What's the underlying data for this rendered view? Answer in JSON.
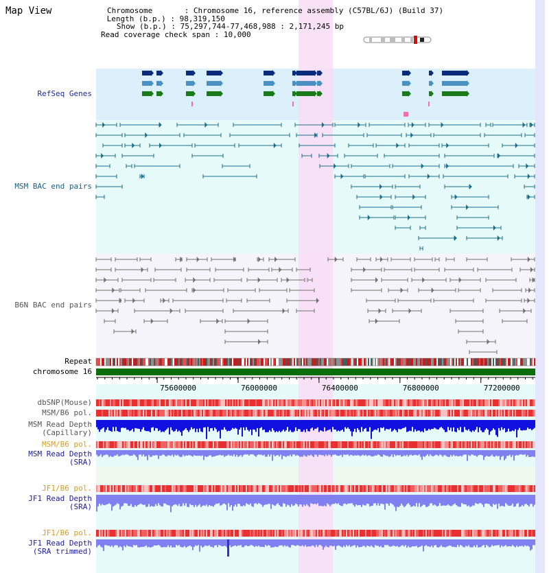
{
  "title": "Map View",
  "info": {
    "chromosome_label": "Chromosome",
    "chromosome_value": "Chromosome 16, reference assembly (C57BL/6J) (Build 37)",
    "length_label": "Length (b.p.)",
    "length_value": "98,319,150",
    "show_label": "Show (b.p.)",
    "show_value": "75,297,744-77,468,988 : 2,171,245 bp",
    "span_label": "Read coverage check span",
    "span_value": "10,000"
  },
  "tracks": {
    "refseq": "RefSeq Genes",
    "msm_bac": "MSM BAC end pairs",
    "b6n_bac": "B6N BAC end pairs",
    "repeat": "Repeat",
    "chromosome": "chromosome 16",
    "dbsnp": "dbSNP(Mouse)",
    "msm_pol": "MSM/B6 pol.",
    "msm_depth_cap_1": "MSM Read Depth",
    "msm_depth_cap_2": "(Capillary)",
    "msm_pol_sra": "MSM/B6 pol.",
    "msm_depth_sra_1": "MSM Read Depth",
    "msm_depth_sra_2": "(SRA)",
    "jf1_pol": "JF1/B6 pol.",
    "jf1_depth_1": "JF1 Read Depth",
    "jf1_depth_2": "(SRA)",
    "jf1_pol_trim": "JF1/B6 pol.",
    "jf1_depth_trim_1": "JF1 Read Depth",
    "jf1_depth_trim_2": "(SRA trimmed)"
  },
  "axis": {
    "ticks": [
      "75600000",
      "76000000",
      "76400000",
      "76800000",
      "77200000"
    ],
    "tick_values": [
      75600000,
      76000000,
      76400000,
      76800000,
      77200000
    ],
    "start": 75297744,
    "end": 77468988
  },
  "highlight": {
    "start": 76300000,
    "end": 76420000
  },
  "colors": {
    "refseq_bg": "#dcf0fc",
    "msm_bg": "#e6fafa",
    "b6n_bg": "#f4f4fa",
    "highlight": "#f8dcf4",
    "chrom": "#0a6e0a",
    "gene_navy": "#0a2a7a",
    "gene_steel": "#4a90c0",
    "gene_green": "#1a7a1a",
    "msm_line": "#1a6e8a",
    "b6n_line": "#707070",
    "depth_dark": "#1010e0",
    "depth_light": "#8080f0",
    "pol_red": "#e83030"
  }
}
